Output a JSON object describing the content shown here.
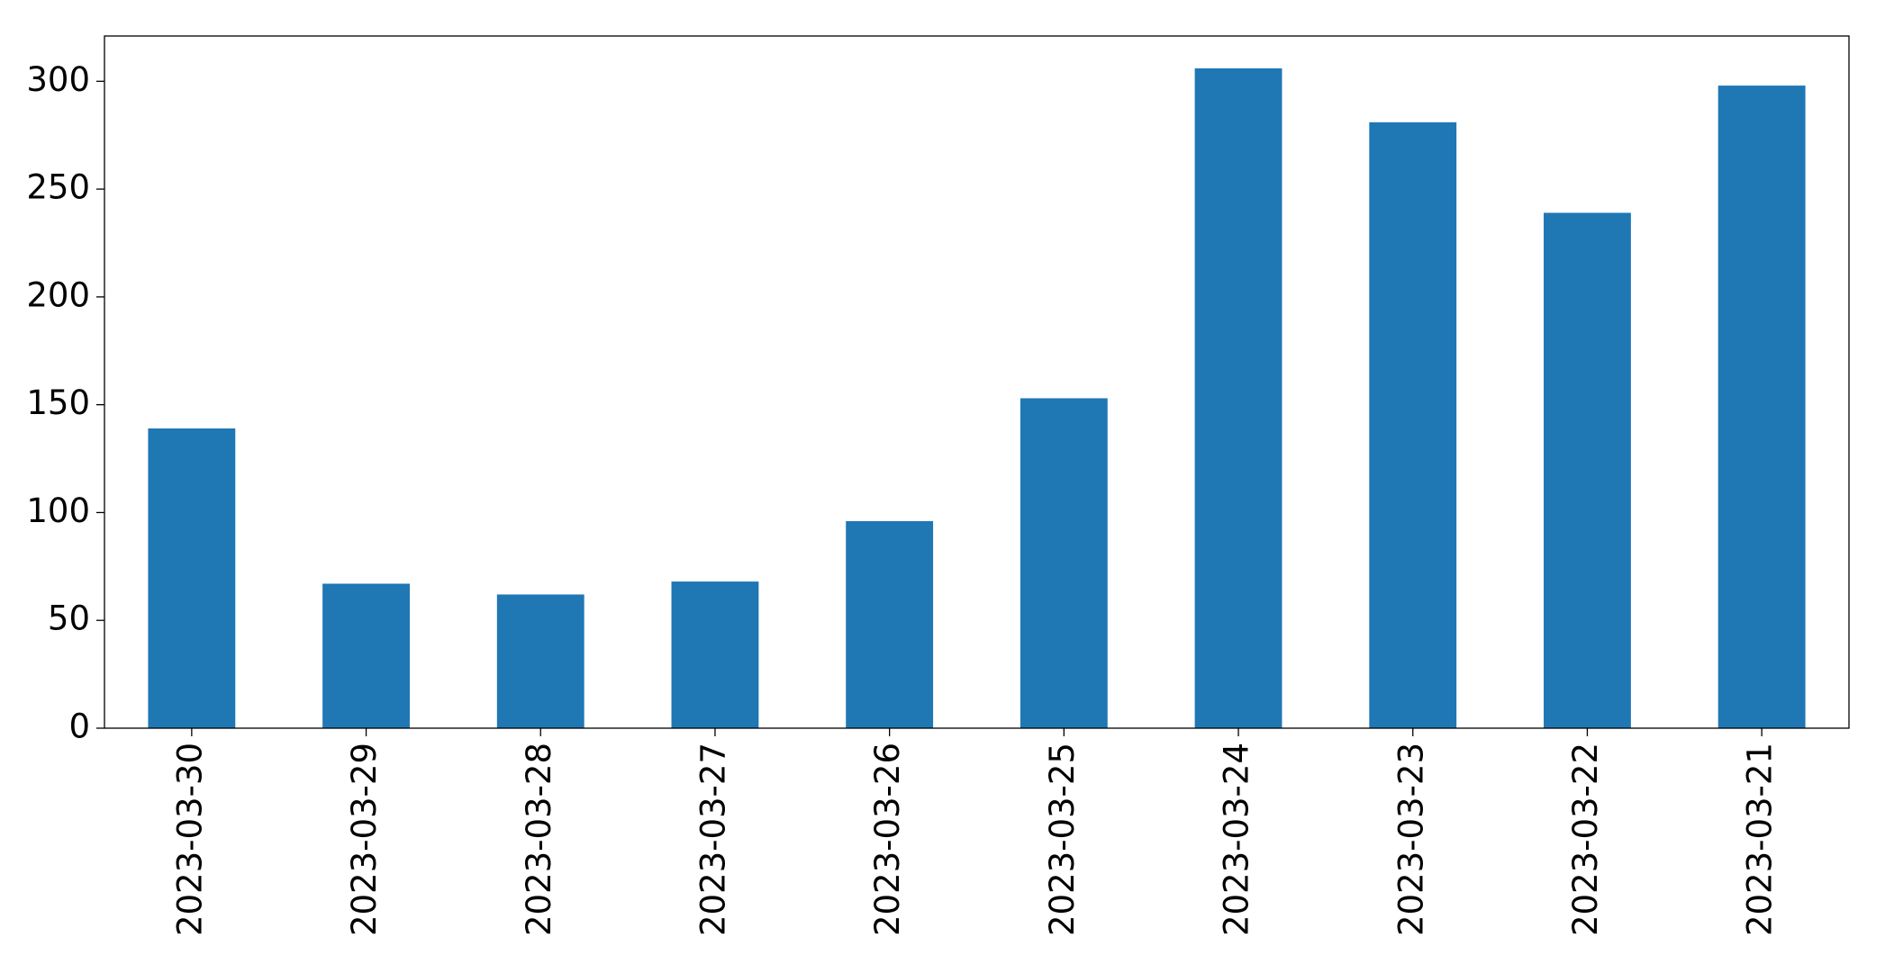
{
  "chart_data": {
    "type": "bar",
    "categories": [
      "2023-03-30",
      "2023-03-29",
      "2023-03-28",
      "2023-03-27",
      "2023-03-26",
      "2023-03-25",
      "2023-03-24",
      "2023-03-23",
      "2023-03-22",
      "2023-03-21"
    ],
    "values": [
      139,
      67,
      62,
      68,
      96,
      153,
      306,
      281,
      239,
      298
    ],
    "color": "#1f77b4",
    "ylim": [
      0,
      321
    ],
    "yticks": [
      0,
      50,
      100,
      150,
      200,
      250,
      300
    ],
    "grid": false
  }
}
